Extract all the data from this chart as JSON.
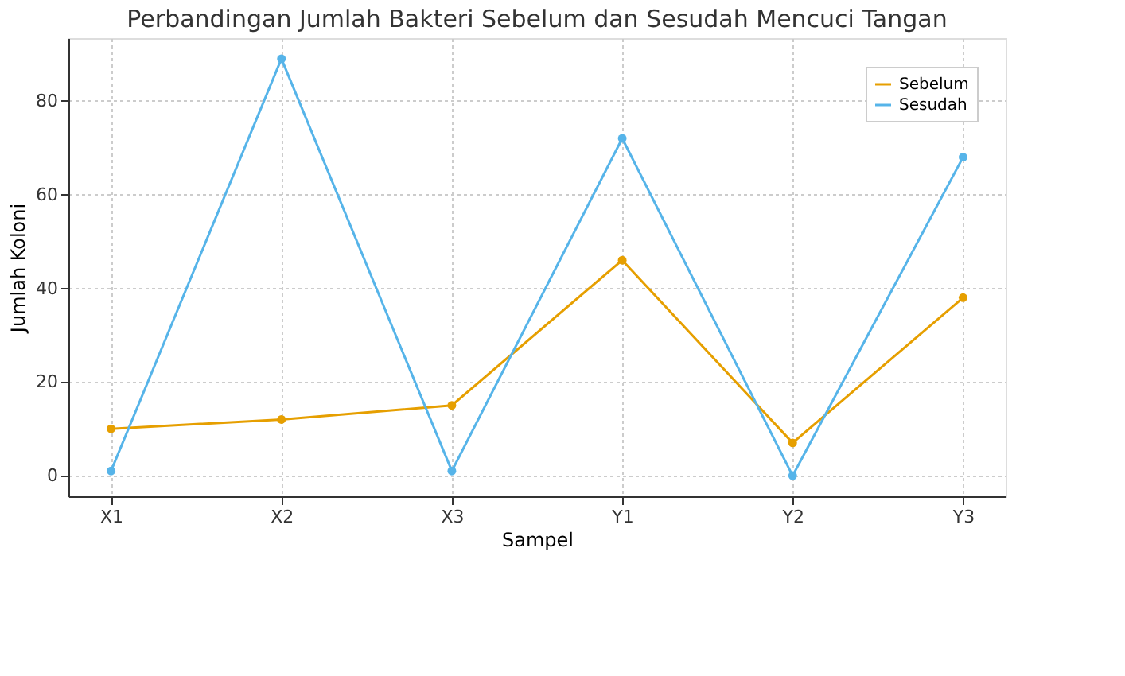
{
  "chart_data": {
    "type": "line",
    "title": "Perbandingan Jumlah Bakteri Sebelum dan Sesudah Mencuci Tangan",
    "xlabel": "Sampel",
    "ylabel": "Jumlah Koloni",
    "categories": [
      "X1",
      "X2",
      "X3",
      "Y1",
      "Y2",
      "Y3"
    ],
    "series": [
      {
        "name": "Sebelum",
        "color": "#e69f00",
        "values": [
          10,
          12,
          15,
          46,
          7,
          38
        ]
      },
      {
        "name": "Sesudah",
        "color": "#56b4e9",
        "values": [
          1,
          89,
          1,
          72,
          0,
          68
        ]
      }
    ],
    "ylim": [
      -4.4,
      93.4
    ],
    "yticks": [
      0,
      20,
      40,
      60,
      80
    ],
    "grid": true,
    "legend": "top right",
    "marker": "circle",
    "line_style": "solid"
  }
}
